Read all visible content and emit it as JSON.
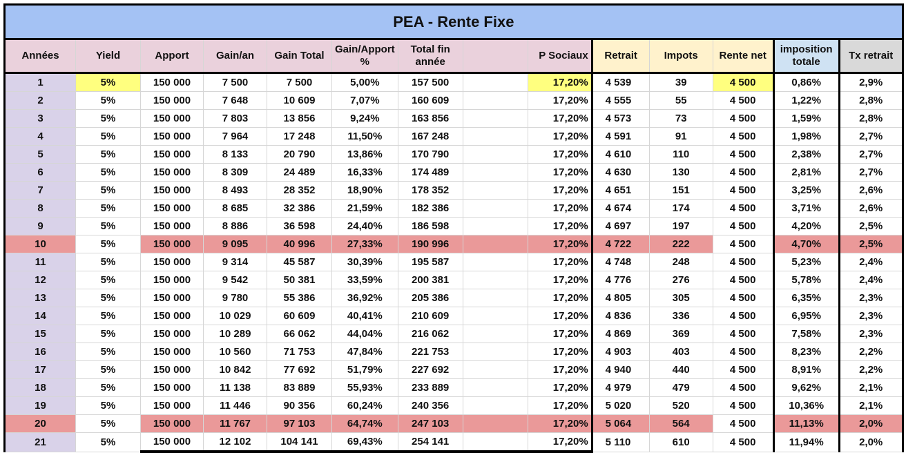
{
  "title": "PEA - Rente Fixe",
  "headers": [
    "Années",
    "Yield",
    "Apport",
    "Gain/an",
    "Gain Total",
    "Gain/Apport %",
    "Total fin année",
    "",
    "P Sociaux",
    "Retrait",
    "Impots",
    "Rente net",
    "imposition totale",
    "Tx retrait"
  ],
  "highlight_rows": [
    10,
    20
  ],
  "colors": {
    "title": "#a4c2f4",
    "header": "#ead1dc",
    "highlight": "#ea9999",
    "input": "#ffff7f",
    "year": "#d9d2e9"
  },
  "rows": [
    [
      "1",
      "5%",
      "150 000",
      "7 500",
      "7 500",
      "5,00%",
      "157 500",
      "",
      "17,20%",
      "4 539",
      "39",
      "4 500",
      "0,86%",
      "2,9%"
    ],
    [
      "2",
      "5%",
      "150 000",
      "7 648",
      "10 609",
      "7,07%",
      "160 609",
      "",
      "17,20%",
      "4 555",
      "55",
      "4 500",
      "1,22%",
      "2,8%"
    ],
    [
      "3",
      "5%",
      "150 000",
      "7 803",
      "13 856",
      "9,24%",
      "163 856",
      "",
      "17,20%",
      "4 573",
      "73",
      "4 500",
      "1,59%",
      "2,8%"
    ],
    [
      "4",
      "5%",
      "150 000",
      "7 964",
      "17 248",
      "11,50%",
      "167 248",
      "",
      "17,20%",
      "4 591",
      "91",
      "4 500",
      "1,98%",
      "2,7%"
    ],
    [
      "5",
      "5%",
      "150 000",
      "8 133",
      "20 790",
      "13,86%",
      "170 790",
      "",
      "17,20%",
      "4 610",
      "110",
      "4 500",
      "2,38%",
      "2,7%"
    ],
    [
      "6",
      "5%",
      "150 000",
      "8 309",
      "24 489",
      "16,33%",
      "174 489",
      "",
      "17,20%",
      "4 630",
      "130",
      "4 500",
      "2,81%",
      "2,7%"
    ],
    [
      "7",
      "5%",
      "150 000",
      "8 493",
      "28 352",
      "18,90%",
      "178 352",
      "",
      "17,20%",
      "4 651",
      "151",
      "4 500",
      "3,25%",
      "2,6%"
    ],
    [
      "8",
      "5%",
      "150 000",
      "8 685",
      "32 386",
      "21,59%",
      "182 386",
      "",
      "17,20%",
      "4 674",
      "174",
      "4 500",
      "3,71%",
      "2,6%"
    ],
    [
      "9",
      "5%",
      "150 000",
      "8 886",
      "36 598",
      "24,40%",
      "186 598",
      "",
      "17,20%",
      "4 697",
      "197",
      "4 500",
      "4,20%",
      "2,5%"
    ],
    [
      "10",
      "5%",
      "150 000",
      "9 095",
      "40 996",
      "27,33%",
      "190 996",
      "",
      "17,20%",
      "4 722",
      "222",
      "4 500",
      "4,70%",
      "2,5%"
    ],
    [
      "11",
      "5%",
      "150 000",
      "9 314",
      "45 587",
      "30,39%",
      "195 587",
      "",
      "17,20%",
      "4 748",
      "248",
      "4 500",
      "5,23%",
      "2,4%"
    ],
    [
      "12",
      "5%",
      "150 000",
      "9 542",
      "50 381",
      "33,59%",
      "200 381",
      "",
      "17,20%",
      "4 776",
      "276",
      "4 500",
      "5,78%",
      "2,4%"
    ],
    [
      "13",
      "5%",
      "150 000",
      "9 780",
      "55 386",
      "36,92%",
      "205 386",
      "",
      "17,20%",
      "4 805",
      "305",
      "4 500",
      "6,35%",
      "2,3%"
    ],
    [
      "14",
      "5%",
      "150 000",
      "10 029",
      "60 609",
      "40,41%",
      "210 609",
      "",
      "17,20%",
      "4 836",
      "336",
      "4 500",
      "6,95%",
      "2,3%"
    ],
    [
      "15",
      "5%",
      "150 000",
      "10 289",
      "66 062",
      "44,04%",
      "216 062",
      "",
      "17,20%",
      "4 869",
      "369",
      "4 500",
      "7,58%",
      "2,3%"
    ],
    [
      "16",
      "5%",
      "150 000",
      "10 560",
      "71 753",
      "47,84%",
      "221 753",
      "",
      "17,20%",
      "4 903",
      "403",
      "4 500",
      "8,23%",
      "2,2%"
    ],
    [
      "17",
      "5%",
      "150 000",
      "10 842",
      "77 692",
      "51,79%",
      "227 692",
      "",
      "17,20%",
      "4 940",
      "440",
      "4 500",
      "8,91%",
      "2,2%"
    ],
    [
      "18",
      "5%",
      "150 000",
      "11 138",
      "83 889",
      "55,93%",
      "233 889",
      "",
      "17,20%",
      "4 979",
      "479",
      "4 500",
      "9,62%",
      "2,1%"
    ],
    [
      "19",
      "5%",
      "150 000",
      "11 446",
      "90 356",
      "60,24%",
      "240 356",
      "",
      "17,20%",
      "5 020",
      "520",
      "4 500",
      "10,36%",
      "2,1%"
    ],
    [
      "20",
      "5%",
      "150 000",
      "11 767",
      "97 103",
      "64,74%",
      "247 103",
      "",
      "17,20%",
      "5 064",
      "564",
      "4 500",
      "11,13%",
      "2,0%"
    ],
    [
      "21",
      "5%",
      "150 000",
      "12 102",
      "104 141",
      "69,43%",
      "254 141",
      "",
      "17,20%",
      "5 110",
      "610",
      "4 500",
      "11,94%",
      "2,0%"
    ]
  ]
}
